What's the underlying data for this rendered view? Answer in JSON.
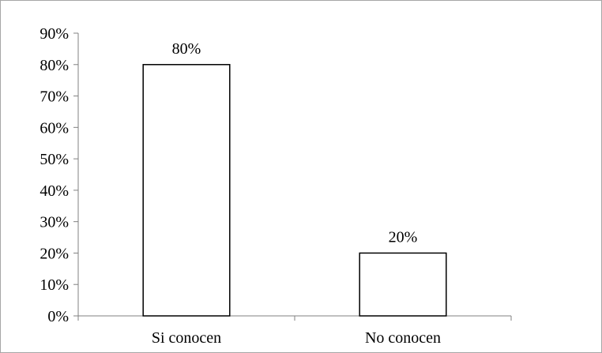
{
  "chart_data": {
    "type": "bar",
    "categories": [
      "Si conocen",
      "No conocen"
    ],
    "values": [
      80,
      20
    ],
    "data_labels": [
      "80%",
      "20%"
    ],
    "title": "",
    "xlabel": "",
    "ylabel": "",
    "ylim": [
      0,
      90
    ],
    "y_ticks": [
      0,
      10,
      20,
      30,
      40,
      50,
      60,
      70,
      80,
      90
    ],
    "y_tick_labels": [
      "0%",
      "10%",
      "20%",
      "30%",
      "40%",
      "50%",
      "60%",
      "70%",
      "80%",
      "90%"
    ],
    "grid": false,
    "legend": "none",
    "bar_fill": "#ffffff",
    "bar_stroke": "#000000",
    "axis_color": "#808080"
  }
}
